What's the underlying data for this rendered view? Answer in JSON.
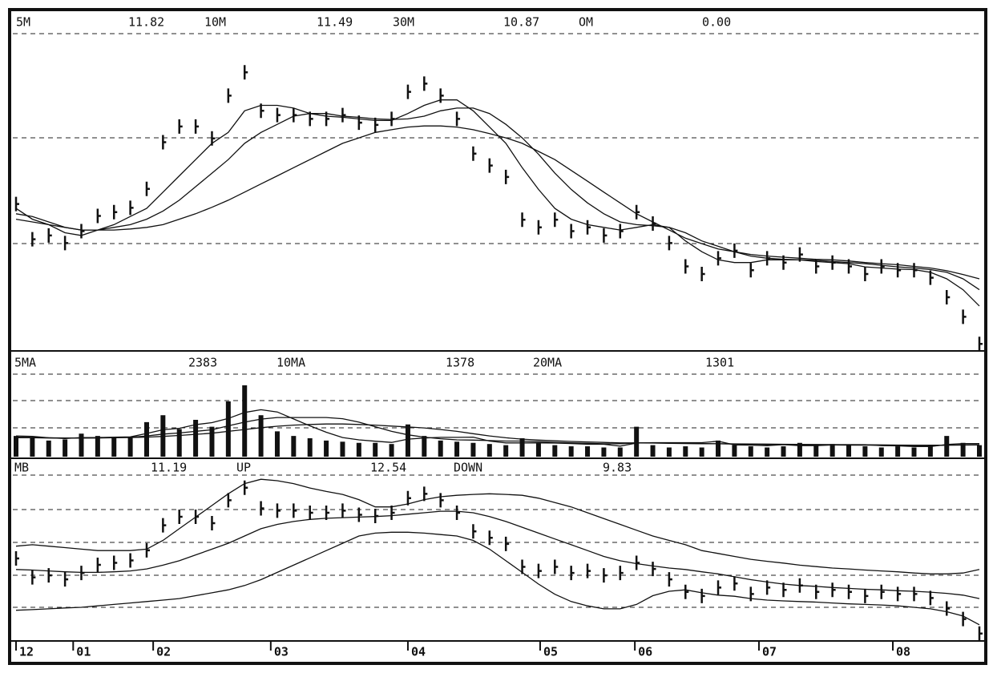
{
  "chart_data": [
    {
      "type": "line",
      "xlim": [
        0,
        59
      ],
      "ylim": [
        8,
        14
      ],
      "grid": true,
      "color": "#111",
      "series": [
        {
          "style": "bars",
          "values": [
            10.68,
            10.03,
            10.1,
            9.96,
            10.18,
            10.46,
            10.53,
            10.61,
            10.96,
            11.82,
            12.11,
            12.11,
            11.89,
            12.68,
            13.11,
            12.4,
            12.32,
            12.32,
            12.25,
            12.25,
            12.32,
            12.18,
            12.14,
            12.25,
            12.75,
            12.9,
            12.68,
            12.25,
            11.61,
            11.39,
            11.18,
            10.39,
            10.25,
            10.39,
            10.18,
            10.25,
            10.1,
            10.18,
            10.53,
            10.32,
            9.96,
            9.53,
            9.39,
            9.68,
            9.82,
            9.46,
            9.68,
            9.6,
            9.75,
            9.53,
            9.6,
            9.53,
            9.39,
            9.53,
            9.46,
            9.46,
            9.32,
            8.96,
            8.6,
            8.1
          ]
        },
        {
          "name": "5M",
          "value": 11.82,
          "style": "line",
          "values": [
            10.6,
            10.4,
            10.3,
            10.15,
            10.1,
            10.2,
            10.3,
            10.45,
            10.6,
            10.9,
            11.2,
            11.5,
            11.8,
            12.0,
            12.4,
            12.5,
            12.5,
            12.45,
            12.35,
            12.3,
            12.28,
            12.25,
            12.22,
            12.22,
            12.35,
            12.5,
            12.6,
            12.6,
            12.4,
            12.1,
            11.8,
            11.35,
            10.95,
            10.6,
            10.4,
            10.3,
            10.25,
            10.2,
            10.25,
            10.3,
            10.25,
            10.0,
            9.8,
            9.65,
            9.6,
            9.6,
            9.65,
            9.65,
            9.65,
            9.62,
            9.6,
            9.58,
            9.52,
            9.5,
            9.48,
            9.47,
            9.42,
            9.3,
            9.1,
            8.8
          ]
        },
        {
          "name": "10M",
          "value": 11.49,
          "style": "line",
          "values": [
            10.5,
            10.45,
            10.35,
            10.25,
            10.2,
            10.2,
            10.25,
            10.3,
            10.4,
            10.55,
            10.75,
            11.0,
            11.25,
            11.5,
            11.8,
            12.0,
            12.15,
            12.3,
            12.35,
            12.35,
            12.3,
            12.28,
            12.25,
            12.24,
            12.25,
            12.3,
            12.4,
            12.45,
            12.45,
            12.35,
            12.15,
            11.9,
            11.6,
            11.25,
            10.95,
            10.7,
            10.5,
            10.35,
            10.3,
            10.28,
            10.25,
            10.15,
            10.0,
            9.9,
            9.8,
            9.72,
            9.68,
            9.66,
            9.65,
            9.64,
            9.62,
            9.6,
            9.58,
            9.55,
            9.52,
            9.5,
            9.47,
            9.42,
            9.3,
            9.1
          ]
        },
        {
          "name": "30M",
          "value": 10.87,
          "style": "line",
          "values": [
            10.4,
            10.35,
            10.3,
            10.25,
            10.2,
            10.2,
            10.2,
            10.22,
            10.25,
            10.3,
            10.4,
            10.5,
            10.62,
            10.75,
            10.9,
            11.05,
            11.2,
            11.35,
            11.5,
            11.65,
            11.8,
            11.9,
            12.0,
            12.05,
            12.1,
            12.12,
            12.12,
            12.1,
            12.05,
            11.98,
            11.9,
            11.8,
            11.65,
            11.5,
            11.3,
            11.1,
            10.9,
            10.7,
            10.5,
            10.35,
            10.2,
            10.05,
            9.95,
            9.85,
            9.8,
            9.75,
            9.72,
            9.7,
            9.68,
            9.66,
            9.65,
            9.63,
            9.6,
            9.58,
            9.56,
            9.53,
            9.5,
            9.45,
            9.38,
            9.3
          ]
        },
        {
          "name": "OM",
          "value": 0,
          "value_label": "0.00"
        }
      ]
    },
    {
      "type": "bar",
      "xlim": [
        0,
        59
      ],
      "ylim": [
        0,
        4000
      ],
      "grid": true,
      "color": "#111",
      "series": [
        {
          "style": "bars",
          "values": [
            900,
            800,
            700,
            750,
            1000,
            900,
            800,
            850,
            1500,
            1800,
            1200,
            1600,
            1300,
            2400,
            3100,
            1800,
            1100,
            900,
            800,
            700,
            650,
            600,
            600,
            550,
            1400,
            900,
            700,
            650,
            600,
            550,
            500,
            800,
            600,
            500,
            450,
            450,
            400,
            400,
            1300,
            500,
            400,
            450,
            400,
            700,
            500,
            450,
            400,
            450,
            600,
            500,
            550,
            500,
            450,
            400,
            450,
            400,
            500,
            900,
            600,
            500
          ]
        },
        {
          "name": "5MA",
          "value": 2383,
          "style": "line",
          "values": [
            900,
            880,
            820,
            790,
            830,
            830,
            850,
            860,
            1010,
            1170,
            1230,
            1390,
            1480,
            1660,
            1920,
            2040,
            1940,
            1640,
            1340,
            1060,
            830,
            730,
            670,
            620,
            760,
            810,
            840,
            840,
            850,
            680,
            600,
            600,
            600,
            590,
            570,
            540,
            540,
            460,
            590,
            610,
            610,
            610,
            610,
            670,
            510,
            500,
            480,
            520,
            480,
            480,
            510,
            520,
            520,
            480,
            470,
            440,
            440,
            530,
            570,
            570
          ]
        },
        {
          "name": "10MA",
          "value": 1378,
          "style": "line",
          "values": [
            850,
            840,
            820,
            810,
            810,
            820,
            830,
            840,
            900,
            980,
            1030,
            1100,
            1170,
            1340,
            1500,
            1630,
            1700,
            1700,
            1700,
            1700,
            1650,
            1500,
            1300,
            1100,
            950,
            850,
            780,
            730,
            720,
            700,
            680,
            680,
            650,
            620,
            600,
            580,
            560,
            560,
            600,
            600,
            600,
            580,
            570,
            560,
            550,
            540,
            530,
            520,
            520,
            520,
            510,
            500,
            500,
            500,
            490,
            480,
            480,
            500,
            510,
            520
          ]
        },
        {
          "name": "20MA",
          "value": 1301,
          "style": "line",
          "values": [
            820,
            820,
            810,
            810,
            810,
            810,
            820,
            830,
            850,
            880,
            920,
            970,
            1020,
            1100,
            1180,
            1260,
            1320,
            1370,
            1400,
            1420,
            1420,
            1400,
            1370,
            1330,
            1290,
            1250,
            1180,
            1100,
            1000,
            900,
            820,
            760,
            720,
            690,
            660,
            640,
            620,
            600,
            600,
            590,
            580,
            570,
            560,
            560,
            555,
            550,
            545,
            540,
            535,
            530,
            525,
            520,
            515,
            510,
            505,
            500,
            500,
            500,
            505,
            510
          ]
        }
      ]
    },
    {
      "type": "line",
      "xlim": [
        0,
        59
      ],
      "ylim": [
        7.9,
        13.9
      ],
      "grid": true,
      "color": "#111",
      "series": [
        {
          "style": "bars",
          "values": [
            10.68,
            10.03,
            10.1,
            9.96,
            10.18,
            10.46,
            10.53,
            10.61,
            10.96,
            11.82,
            12.11,
            12.11,
            11.89,
            12.68,
            13.11,
            12.4,
            12.32,
            12.32,
            12.25,
            12.25,
            12.32,
            12.18,
            12.14,
            12.25,
            12.75,
            12.9,
            12.68,
            12.25,
            11.61,
            11.39,
            11.18,
            10.39,
            10.25,
            10.39,
            10.18,
            10.25,
            10.1,
            10.18,
            10.53,
            10.32,
            9.96,
            9.53,
            9.39,
            9.68,
            9.82,
            9.46,
            9.68,
            9.6,
            9.75,
            9.53,
            9.6,
            9.53,
            9.39,
            9.53,
            9.46,
            9.46,
            9.32,
            8.96,
            8.6,
            8.1
          ]
        },
        {
          "name": "MB",
          "value": 11.19,
          "style": "line",
          "values": [
            10.3,
            10.28,
            10.25,
            10.22,
            10.2,
            10.2,
            10.22,
            10.25,
            10.32,
            10.45,
            10.6,
            10.8,
            11.0,
            11.2,
            11.45,
            11.7,
            11.85,
            11.95,
            12.02,
            12.06,
            12.08,
            12.1,
            12.12,
            12.15,
            12.2,
            12.25,
            12.3,
            12.3,
            12.25,
            12.12,
            11.95,
            11.75,
            11.55,
            11.35,
            11.15,
            10.95,
            10.75,
            10.6,
            10.5,
            10.42,
            10.35,
            10.3,
            10.22,
            10.15,
            10.05,
            9.95,
            9.87,
            9.8,
            9.75,
            9.72,
            9.68,
            9.65,
            9.62,
            9.6,
            9.57,
            9.55,
            9.52,
            9.48,
            9.42,
            9.3
          ]
        },
        {
          "name": "UP",
          "value": 12.54,
          "style": "line",
          "values": [
            11.1,
            11.15,
            11.1,
            11.05,
            11.0,
            10.95,
            10.95,
            10.95,
            11.0,
            11.3,
            11.7,
            12.1,
            12.5,
            12.9,
            13.25,
            13.4,
            13.35,
            13.25,
            13.1,
            12.98,
            12.88,
            12.7,
            12.45,
            12.45,
            12.55,
            12.7,
            12.8,
            12.85,
            12.88,
            12.9,
            12.88,
            12.85,
            12.75,
            12.6,
            12.45,
            12.25,
            12.05,
            11.85,
            11.65,
            11.45,
            11.3,
            11.15,
            10.95,
            10.85,
            10.75,
            10.65,
            10.58,
            10.52,
            10.45,
            10.4,
            10.35,
            10.32,
            10.28,
            10.25,
            10.22,
            10.18,
            10.15,
            10.15,
            10.18,
            10.3
          ]
        },
        {
          "name": "DOWN",
          "value": 9.83,
          "style": "line",
          "values": [
            8.9,
            8.92,
            8.95,
            8.98,
            9.0,
            9.05,
            9.1,
            9.15,
            9.2,
            9.25,
            9.3,
            9.4,
            9.5,
            9.6,
            9.75,
            9.95,
            10.2,
            10.45,
            10.7,
            10.95,
            11.2,
            11.45,
            11.55,
            11.58,
            11.58,
            11.55,
            11.5,
            11.45,
            11.3,
            11.0,
            10.6,
            10.2,
            9.8,
            9.45,
            9.2,
            9.05,
            8.95,
            8.95,
            9.1,
            9.4,
            9.55,
            9.6,
            9.5,
            9.42,
            9.38,
            9.3,
            9.25,
            9.22,
            9.2,
            9.18,
            9.15,
            9.12,
            9.1,
            9.08,
            9.05,
            9.0,
            8.95,
            8.85,
            8.7,
            8.4
          ]
        }
      ],
      "xticks": [
        {
          "value": 0,
          "label": "12"
        },
        {
          "value": 3.5,
          "label": "01"
        },
        {
          "value": 8.4,
          "label": "02"
        },
        {
          "value": 15.6,
          "label": "03"
        },
        {
          "value": 24,
          "label": "04"
        },
        {
          "value": 32.1,
          "label": "05"
        },
        {
          "value": 37.9,
          "label": "06"
        },
        {
          "value": 45.5,
          "label": "07"
        },
        {
          "value": 53.7,
          "label": "08"
        }
      ]
    }
  ]
}
